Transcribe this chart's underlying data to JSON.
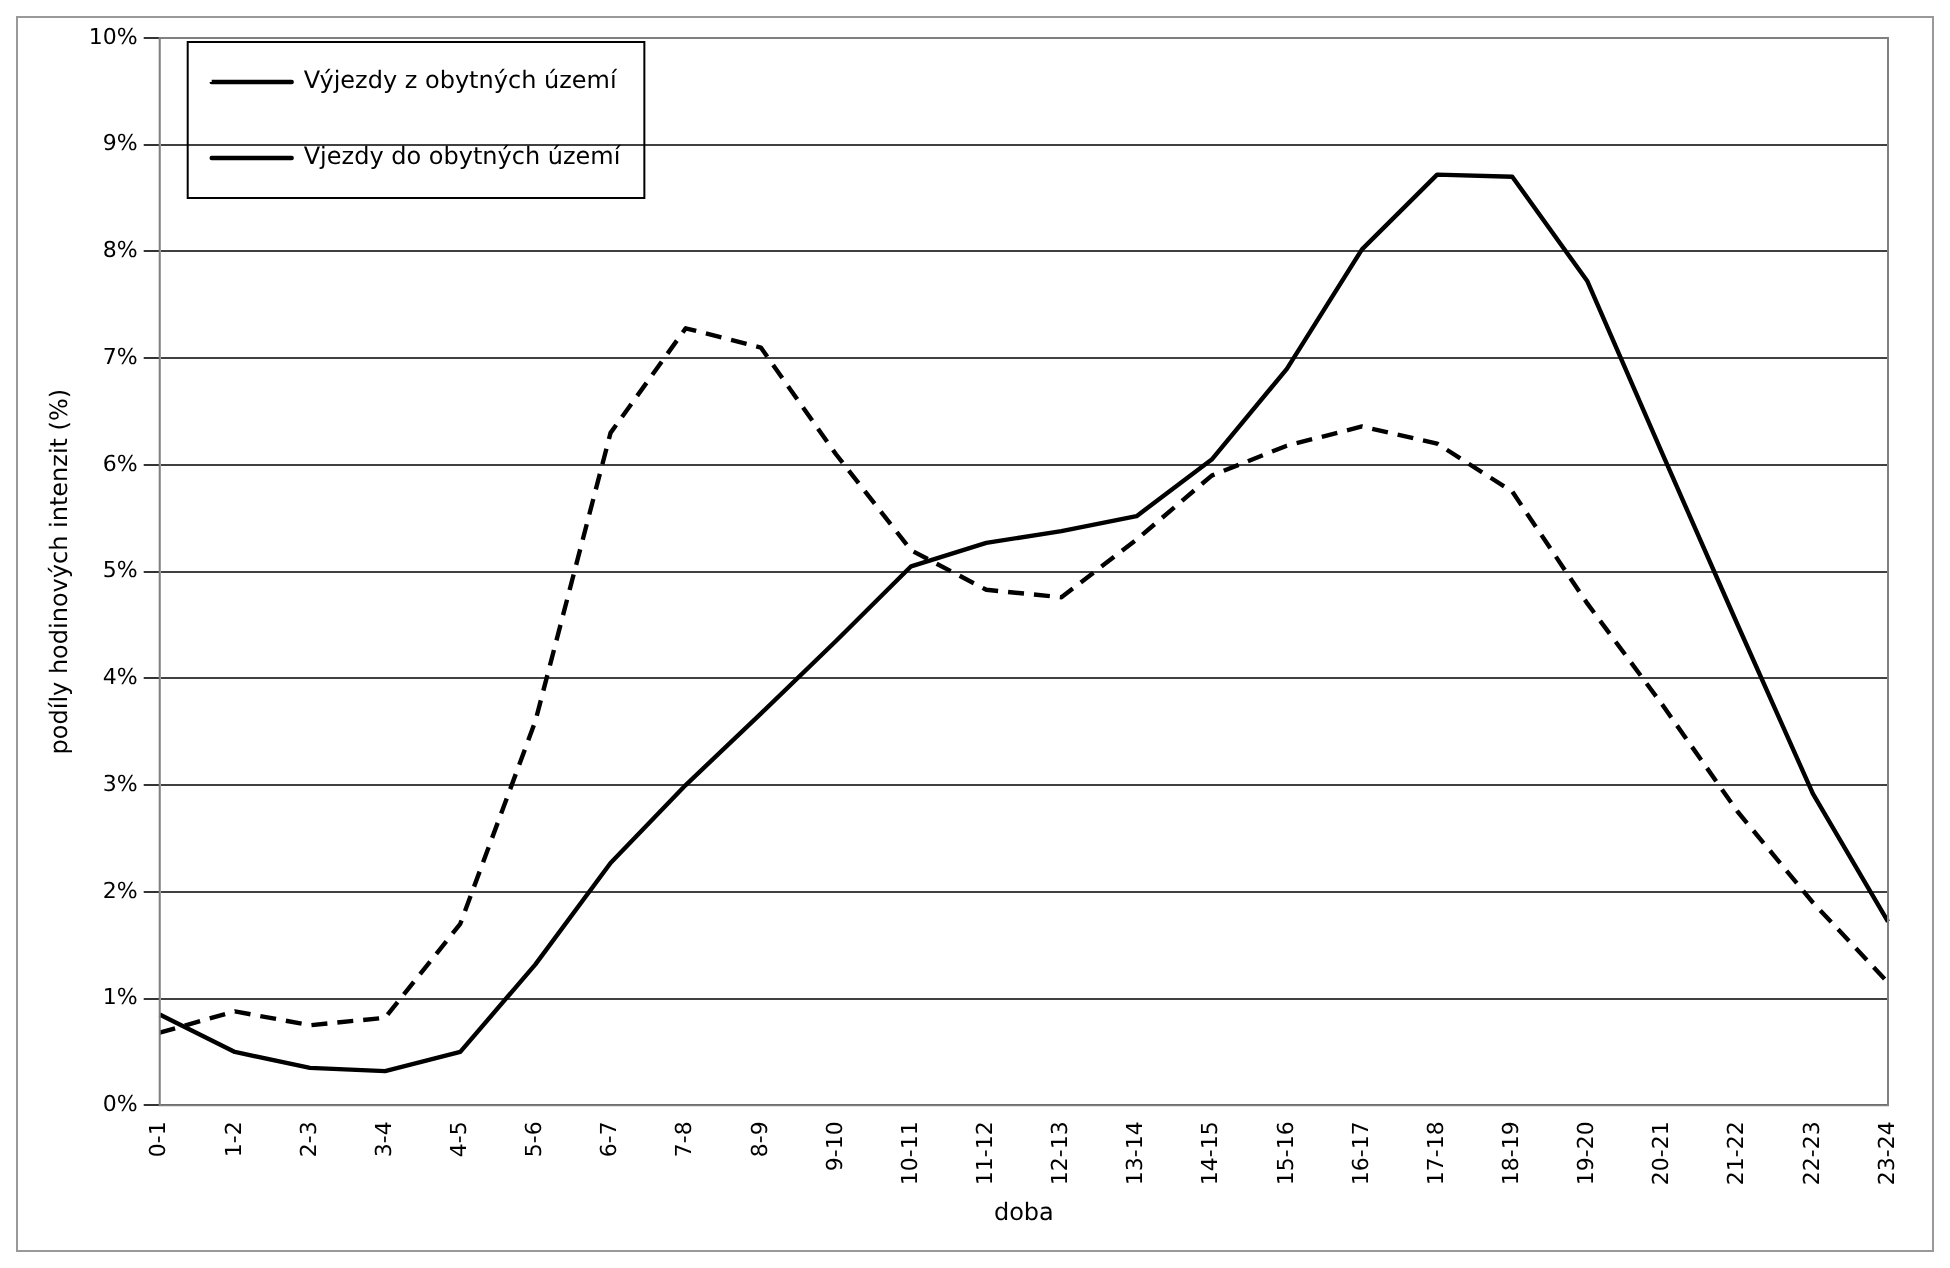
{
  "chart_data": {
    "type": "line",
    "xlabel": "doba",
    "ylabel": "podíly hodinových intenzit (%)",
    "categories": [
      "0-1",
      "1-2",
      "2-3",
      "3-4",
      "4-5",
      "5-6",
      "6-7",
      "7-8",
      "8-9",
      "9-10",
      "10-11",
      "11-12",
      "12-13",
      "13-14",
      "14-15",
      "15-16",
      "16-17",
      "17-18",
      "18-19",
      "19-20",
      "20-21",
      "21-22",
      "22-23",
      "23-24"
    ],
    "series": [
      {
        "name": "Výjezdy z obytných území",
        "color": "#000000",
        "line_style": "dashed",
        "values": [
          0.68,
          0.88,
          0.75,
          0.82,
          1.7,
          3.6,
          6.3,
          7.28,
          7.1,
          6.1,
          5.2,
          4.83,
          4.76,
          5.3,
          5.9,
          6.18,
          6.36,
          6.2,
          5.75,
          4.7,
          3.75,
          2.75,
          1.9,
          1.15
        ]
      },
      {
        "name": "Vjezdy do obytných území",
        "color": "#000000",
        "line_style": "solid",
        "values": [
          0.85,
          0.5,
          0.35,
          0.32,
          0.5,
          1.32,
          2.27,
          3.0,
          3.67,
          4.35,
          5.05,
          5.27,
          5.38,
          5.52,
          6.05,
          6.9,
          8.02,
          8.72,
          8.7,
          7.72,
          6.1,
          4.5,
          2.92,
          1.72
        ]
      }
    ],
    "ylim": [
      0,
      10
    ],
    "yticks": [
      {
        "value": 0,
        "label": "0%"
      },
      {
        "value": 1,
        "label": "1%"
      },
      {
        "value": 2,
        "label": "2%"
      },
      {
        "value": 3,
        "label": "3%"
      },
      {
        "value": 4,
        "label": "4%"
      },
      {
        "value": 5,
        "label": "5%"
      },
      {
        "value": 6,
        "label": "6%"
      },
      {
        "value": 7,
        "label": "7%"
      },
      {
        "value": 8,
        "label": "8%"
      },
      {
        "value": 9,
        "label": "9%"
      },
      {
        "value": 10,
        "label": "10%"
      }
    ],
    "grid": "y",
    "legend": "top left",
    "marker": "none"
  }
}
